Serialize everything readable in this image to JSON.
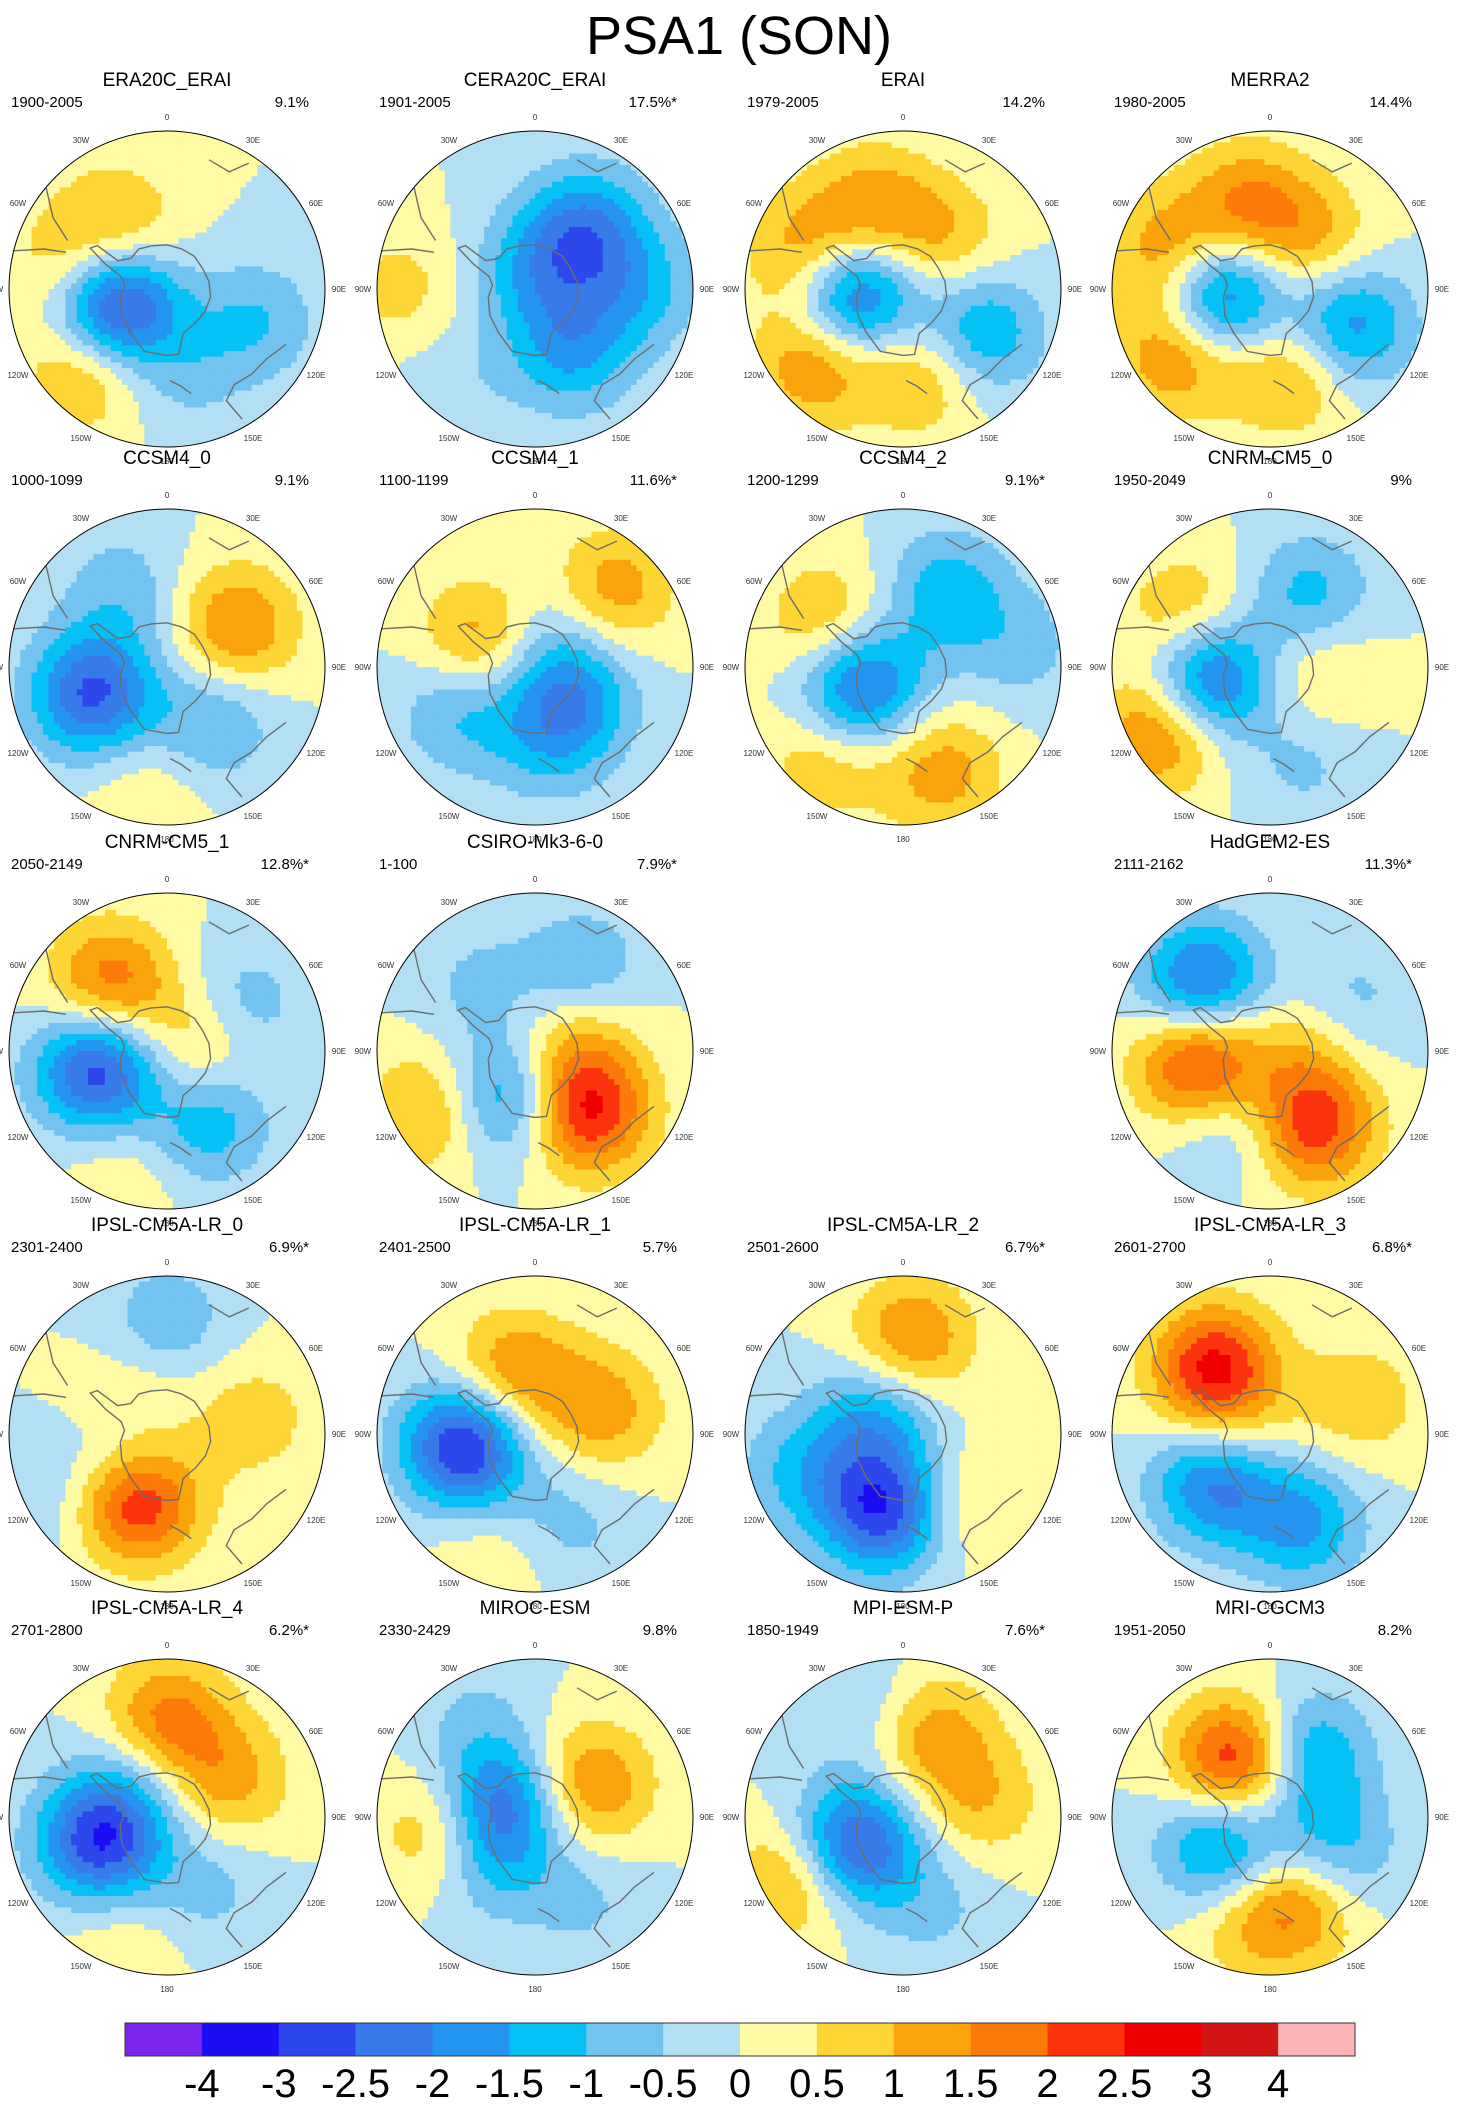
{
  "title": "PSA1 (SON)",
  "colors": {
    "levels": [
      "#7b24ee",
      "#1a0df2",
      "#2e47ed",
      "#377be8",
      "#2495ef",
      "#06c1f5",
      "#72c3ef",
      "#b2dff3",
      "#fefba4",
      "#fdd534",
      "#fba30b",
      "#fb7a09",
      "#fb340d",
      "#ee0000",
      "#d11515",
      "#fdb4b7"
    ],
    "coastline": "#6d6d6d"
  },
  "colorbar": {
    "labels": [
      "-4",
      "-3",
      "-2.5",
      "-2",
      "-1.5",
      "-1",
      "-0.5",
      "0",
      "0.5",
      "1",
      "1.5",
      "2",
      "2.5",
      "3",
      "4"
    ]
  },
  "lon_labels": [
    "0",
    "30E",
    "60E",
    "90E",
    "120E",
    "150E",
    "180",
    "150W",
    "120W",
    "90W",
    "60W",
    "30W"
  ],
  "chart_data": {
    "type": "heatmap",
    "projection": "south-polar-stereographic",
    "field": "PSA1 pattern (SON)",
    "color_levels": [
      -4,
      -3,
      -2.5,
      -2,
      -1.5,
      -1,
      -0.5,
      0,
      0.5,
      1,
      1.5,
      2,
      2.5,
      3,
      4
    ],
    "panels": [
      {
        "name": "ERA20C_ERAI",
        "period": "1900-2005",
        "variance": "9.1%",
        "row": 0,
        "col": 0,
        "centers": [
          {
            "lon": -105,
            "r": 0.35,
            "v": -3.4
          },
          {
            "lon": -135,
            "r": 0.72,
            "v": 1.3
          },
          {
            "lon": -80,
            "r": 0.62,
            "v": 1.0
          },
          {
            "lon": -40,
            "r": 0.5,
            "v": 1.2
          },
          {
            "lon": 110,
            "r": 0.6,
            "v": -1.0
          },
          {
            "lon": 170,
            "r": 0.55,
            "v": -0.6
          }
        ]
      },
      {
        "name": "CERA20C_ERAI",
        "period": "1901-2005",
        "variance": "17.5%*",
        "row": 0,
        "col": 1,
        "centers": [
          {
            "lon": 0,
            "r": 0.1,
            "v": -1.2
          },
          {
            "lon": 40,
            "r": 0.5,
            "v": -1.9
          },
          {
            "lon": 150,
            "r": 0.45,
            "v": -1.5
          },
          {
            "lon": 90,
            "r": 0.65,
            "v": -1.1
          },
          {
            "lon": -90,
            "r": 0.85,
            "v": 0.7
          },
          {
            "lon": -140,
            "r": 0.8,
            "v": -0.4
          }
        ]
      },
      {
        "name": "ERAI",
        "period": "1979-2005",
        "variance": "14.2%",
        "row": 0,
        "col": 2,
        "centers": [
          {
            "lon": -95,
            "r": 0.32,
            "v": -2.9
          },
          {
            "lon": -130,
            "r": 0.72,
            "v": 1.6
          },
          {
            "lon": -70,
            "r": 0.62,
            "v": 1.6
          },
          {
            "lon": -20,
            "r": 0.55,
            "v": 1.3
          },
          {
            "lon": 120,
            "r": 0.55,
            "v": -1.7
          },
          {
            "lon": 165,
            "r": 0.55,
            "v": 1.2
          },
          {
            "lon": 40,
            "r": 0.4,
            "v": 1.0
          }
        ]
      },
      {
        "name": "MERRA2",
        "period": "1980-2005",
        "variance": "14.4%",
        "row": 0,
        "col": 3,
        "centers": [
          {
            "lon": -95,
            "r": 0.32,
            "v": -2.7
          },
          {
            "lon": -125,
            "r": 0.72,
            "v": 1.6
          },
          {
            "lon": -70,
            "r": 0.65,
            "v": 1.6
          },
          {
            "lon": -15,
            "r": 0.55,
            "v": 1.5
          },
          {
            "lon": 115,
            "r": 0.55,
            "v": -1.9
          },
          {
            "lon": 165,
            "r": 0.55,
            "v": 1.3
          },
          {
            "lon": 40,
            "r": 0.4,
            "v": 1.1
          }
        ]
      },
      {
        "name": "CCSM4_0",
        "period": "1000-1099",
        "variance": "9.1%",
        "row": 1,
        "col": 0,
        "centers": [
          {
            "lon": -110,
            "r": 0.5,
            "v": -2.6
          },
          {
            "lon": 60,
            "r": 0.5,
            "v": 1.6
          },
          {
            "lon": 140,
            "r": 0.45,
            "v": -1.1
          },
          {
            "lon": -30,
            "r": 0.55,
            "v": -0.8
          },
          {
            "lon": -170,
            "r": 0.75,
            "v": 0.5
          }
        ]
      },
      {
        "name": "CCSM4_1",
        "period": "1100-1199",
        "variance": "11.6%*",
        "row": 1,
        "col": 1,
        "centers": [
          {
            "lon": -60,
            "r": 0.35,
            "v": 1.7
          },
          {
            "lon": 130,
            "r": 0.3,
            "v": -1.7
          },
          {
            "lon": 45,
            "r": 0.7,
            "v": 1.3
          },
          {
            "lon": -120,
            "r": 0.55,
            "v": -1.1
          },
          {
            "lon": 170,
            "r": 0.5,
            "v": -0.8
          },
          {
            "lon": 0,
            "r": 0.2,
            "v": -0.9
          }
        ]
      },
      {
        "name": "CCSM4_2",
        "period": "1200-1299",
        "variance": "9.1%*",
        "row": 1,
        "col": 2,
        "centers": [
          {
            "lon": -115,
            "r": 0.3,
            "v": -2.5
          },
          {
            "lon": -140,
            "r": 0.75,
            "v": 1.0
          },
          {
            "lon": -60,
            "r": 0.55,
            "v": 1.2
          },
          {
            "lon": 30,
            "r": 0.55,
            "v": -1.3
          },
          {
            "lon": 160,
            "r": 0.7,
            "v": 1.3
          },
          {
            "lon": 80,
            "r": 0.75,
            "v": -0.7
          }
        ]
      },
      {
        "name": "CNRM-CM5_0",
        "period": "1950-2049",
        "variance": "9%",
        "row": 1,
        "col": 3,
        "centers": [
          {
            "lon": -100,
            "r": 0.4,
            "v": -2.8
          },
          {
            "lon": -120,
            "r": 0.78,
            "v": 1.9
          },
          {
            "lon": -60,
            "r": 0.6,
            "v": 1.3
          },
          {
            "lon": 30,
            "r": 0.5,
            "v": -1.3
          },
          {
            "lon": 160,
            "r": 0.65,
            "v": -0.6
          },
          {
            "lon": 90,
            "r": 0.3,
            "v": 0.8
          }
        ]
      },
      {
        "name": "CNRM-CM5_1",
        "period": "2050-2149",
        "variance": "12.8%*",
        "row": 2,
        "col": 0,
        "centers": [
          {
            "lon": -105,
            "r": 0.45,
            "v": -2.9
          },
          {
            "lon": -40,
            "r": 0.55,
            "v": 1.9
          },
          {
            "lon": 150,
            "r": 0.5,
            "v": -1.5
          },
          {
            "lon": 60,
            "r": 0.55,
            "v": -0.9
          },
          {
            "lon": 90,
            "r": 0.2,
            "v": 1.2
          },
          {
            "lon": -160,
            "r": 0.75,
            "v": 0.5
          }
        ]
      },
      {
        "name": "CSIRO-Mk3-6-0",
        "period": "1-100",
        "variance": "7.9%*",
        "row": 2,
        "col": 1,
        "centers": [
          {
            "lon": 140,
            "r": 0.5,
            "v": 2.6
          },
          {
            "lon": -150,
            "r": 0.35,
            "v": -1.9
          },
          {
            "lon": -120,
            "r": 0.75,
            "v": 1.3
          },
          {
            "lon": 30,
            "r": 0.6,
            "v": -1.0
          },
          {
            "lon": 80,
            "r": 0.25,
            "v": 1.0
          },
          {
            "lon": -40,
            "r": 0.55,
            "v": -0.6
          }
        ]
      },
      {
        "name": "HadGEM2-ES",
        "period": "2111-2162",
        "variance": "11.3%*",
        "row": 2,
        "col": 3,
        "centers": [
          {
            "lon": -45,
            "r": 0.6,
            "v": -2.4
          },
          {
            "lon": -100,
            "r": 0.45,
            "v": 2.7
          },
          {
            "lon": 150,
            "r": 0.55,
            "v": 2.3
          },
          {
            "lon": -150,
            "r": 0.5,
            "v": -1.0
          },
          {
            "lon": 60,
            "r": 0.6,
            "v": -0.7
          },
          {
            "lon": 90,
            "r": 0.2,
            "v": 0.8
          }
        ]
      },
      {
        "name": "IPSL-CM5A-LR_0",
        "period": "2301-2400",
        "variance": "6.9%*",
        "row": 3,
        "col": 0,
        "centers": [
          {
            "lon": -155,
            "r": 0.45,
            "v": 2.8
          },
          {
            "lon": -100,
            "r": 0.25,
            "v": -2.4
          },
          {
            "lon": -70,
            "r": 0.25,
            "v": 2.0
          },
          {
            "lon": 0,
            "r": 0.7,
            "v": -0.9
          },
          {
            "lon": 80,
            "r": 0.55,
            "v": 0.8
          },
          {
            "lon": -120,
            "r": 0.85,
            "v": -0.5
          }
        ]
      },
      {
        "name": "IPSL-CM5A-LR_1",
        "period": "2401-2500",
        "variance": "5.7%",
        "row": 3,
        "col": 1,
        "centers": [
          {
            "lon": -100,
            "r": 0.45,
            "v": -3.2
          },
          {
            "lon": -20,
            "r": 0.4,
            "v": 1.6
          },
          {
            "lon": 70,
            "r": 0.45,
            "v": 1.3
          },
          {
            "lon": 160,
            "r": 0.6,
            "v": -0.7
          },
          {
            "lon": -160,
            "r": 0.8,
            "v": 0.5
          }
        ]
      },
      {
        "name": "IPSL-CM5A-LR_2",
        "period": "2501-2600",
        "variance": "6.7%*",
        "row": 3,
        "col": 2,
        "centers": [
          {
            "lon": -165,
            "r": 0.5,
            "v": -2.9
          },
          {
            "lon": 5,
            "r": 0.6,
            "v": 1.6
          },
          {
            "lon": -110,
            "r": 0.7,
            "v": -1.0
          },
          {
            "lon": -60,
            "r": 0.2,
            "v": -1.5
          },
          {
            "lon": 140,
            "r": 0.55,
            "v": 0.7
          }
        ]
      },
      {
        "name": "IPSL-CM5A-LR_3",
        "period": "2601-2700",
        "variance": "6.8%*",
        "row": 3,
        "col": 3,
        "centers": [
          {
            "lon": -40,
            "r": 0.55,
            "v": 2.6
          },
          {
            "lon": -130,
            "r": 0.45,
            "v": -2.4
          },
          {
            "lon": 160,
            "r": 0.6,
            "v": -1.6
          },
          {
            "lon": 70,
            "r": 0.6,
            "v": 0.9
          },
          {
            "lon": -100,
            "r": 0.25,
            "v": 0.8
          }
        ]
      },
      {
        "name": "IPSL-CM5A-LR_4",
        "period": "2701-2800",
        "variance": "6.2%*",
        "row": 4,
        "col": 0,
        "centers": [
          {
            "lon": -110,
            "r": 0.45,
            "v": -2.9
          },
          {
            "lon": 0,
            "r": 0.6,
            "v": 1.8
          },
          {
            "lon": 60,
            "r": 0.45,
            "v": 1.2
          },
          {
            "lon": 150,
            "r": 0.5,
            "v": -0.7
          },
          {
            "lon": -160,
            "r": 0.8,
            "v": 0.5
          },
          {
            "lon": -40,
            "r": 0.3,
            "v": -0.8
          }
        ]
      },
      {
        "name": "MIROC-ESM",
        "period": "2330-2429",
        "variance": "9.8%",
        "row": 4,
        "col": 1,
        "centers": [
          {
            "lon": -100,
            "r": 0.55,
            "v": 1.6
          },
          {
            "lon": -70,
            "r": 0.25,
            "v": -2.4
          },
          {
            "lon": 60,
            "r": 0.4,
            "v": 1.6
          },
          {
            "lon": -130,
            "r": 0.4,
            "v": -1.2
          },
          {
            "lon": 150,
            "r": 0.6,
            "v": -0.6
          },
          {
            "lon": -30,
            "r": 0.75,
            "v": -0.5
          }
        ]
      },
      {
        "name": "MPI-ESM-P",
        "period": "1850-1949",
        "variance": "7.6%*",
        "row": 4,
        "col": 2,
        "centers": [
          {
            "lon": -120,
            "r": 0.35,
            "v": -2.8
          },
          {
            "lon": -120,
            "r": 0.78,
            "v": 1.4
          },
          {
            "lon": 20,
            "r": 0.55,
            "v": 1.3
          },
          {
            "lon": 80,
            "r": 0.5,
            "v": 0.9
          },
          {
            "lon": 160,
            "r": 0.6,
            "v": -0.6
          },
          {
            "lon": -20,
            "r": 0.75,
            "v": -0.6
          }
        ]
      },
      {
        "name": "MRI-CGCM3",
        "period": "1951-2050",
        "variance": "8.2%",
        "row": 4,
        "col": 3,
        "centers": [
          {
            "lon": -30,
            "r": 0.4,
            "v": 2.8
          },
          {
            "lon": -120,
            "r": 0.35,
            "v": -2.0
          },
          {
            "lon": 30,
            "r": 0.45,
            "v": -1.8
          },
          {
            "lon": 160,
            "r": 0.55,
            "v": 1.6
          },
          {
            "lon": 120,
            "r": 0.45,
            "v": -1.4
          },
          {
            "lon": -170,
            "r": 0.7,
            "v": 0.8
          }
        ]
      }
    ]
  }
}
